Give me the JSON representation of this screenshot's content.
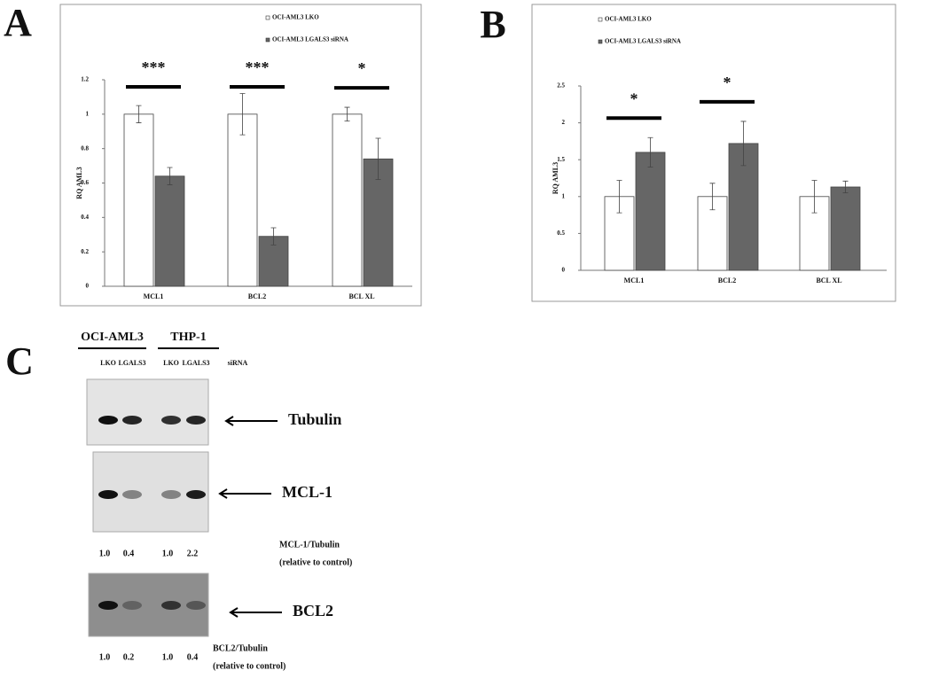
{
  "chart_data": [
    {
      "type": "bar",
      "panel": "A",
      "ylabel": "RQ AML3",
      "categories": [
        "MCL1",
        "BCL2",
        "BCL XL"
      ],
      "series": [
        {
          "name": "OCI-AML3 LKO",
          "color": "#ffffff",
          "values": [
            1,
            1,
            1
          ],
          "errors": [
            0.05,
            0.12,
            0.04
          ]
        },
        {
          "name": "OCI-AML3 LGALS3 siRNA",
          "color": "#666666",
          "values": [
            0.64,
            0.29,
            0.74
          ],
          "errors": [
            0.05,
            0.05,
            0.12
          ]
        }
      ],
      "significance": [
        "***",
        "***",
        "*"
      ],
      "ylim": [
        0,
        1.2
      ],
      "yticks": [
        0,
        0.2,
        0.4,
        0.6,
        0.8,
        1,
        1.2
      ]
    },
    {
      "type": "bar",
      "panel": "B",
      "ylabel": "RQ AML3",
      "categories": [
        "MCL1",
        "BCL2",
        "BCL XL"
      ],
      "series": [
        {
          "name": "OCI-AML3 LKO",
          "color": "#ffffff",
          "values": [
            1,
            1,
            1
          ],
          "errors": [
            0.22,
            0.18,
            0.22
          ]
        },
        {
          "name": "OCI-AML3 LGALS3 siRNA",
          "color": "#666666",
          "values": [
            1.6,
            1.72,
            1.13
          ],
          "errors": [
            0.2,
            0.3,
            0.08
          ]
        }
      ],
      "significance": [
        "*",
        "*",
        null
      ],
      "ylim": [
        0,
        2.5
      ],
      "yticks": [
        0,
        0.5,
        1,
        1.5,
        2,
        2.5
      ]
    }
  ],
  "blot": {
    "panel": "C",
    "groups": [
      "OCI-AML3",
      "THP-1"
    ],
    "lanes": [
      "LKO",
      "LGALS3",
      "LKO",
      "LGALS3"
    ],
    "lane_note": "siRNA",
    "bands": [
      {
        "label": "Tubulin"
      },
      {
        "label": "MCL-1",
        "ratio_label": "MCL-1/Tubulin",
        "ratio_note": "(relative to control)",
        "ratios": [
          "1.0",
          "0.4",
          "1.0",
          "2.2"
        ]
      },
      {
        "label": "BCL2",
        "ratio_label": "BCL2/Tubulin",
        "ratio_note": "(relative to control)",
        "ratios": [
          "1.0",
          "0.2",
          "1.0",
          "0.4"
        ]
      }
    ]
  }
}
